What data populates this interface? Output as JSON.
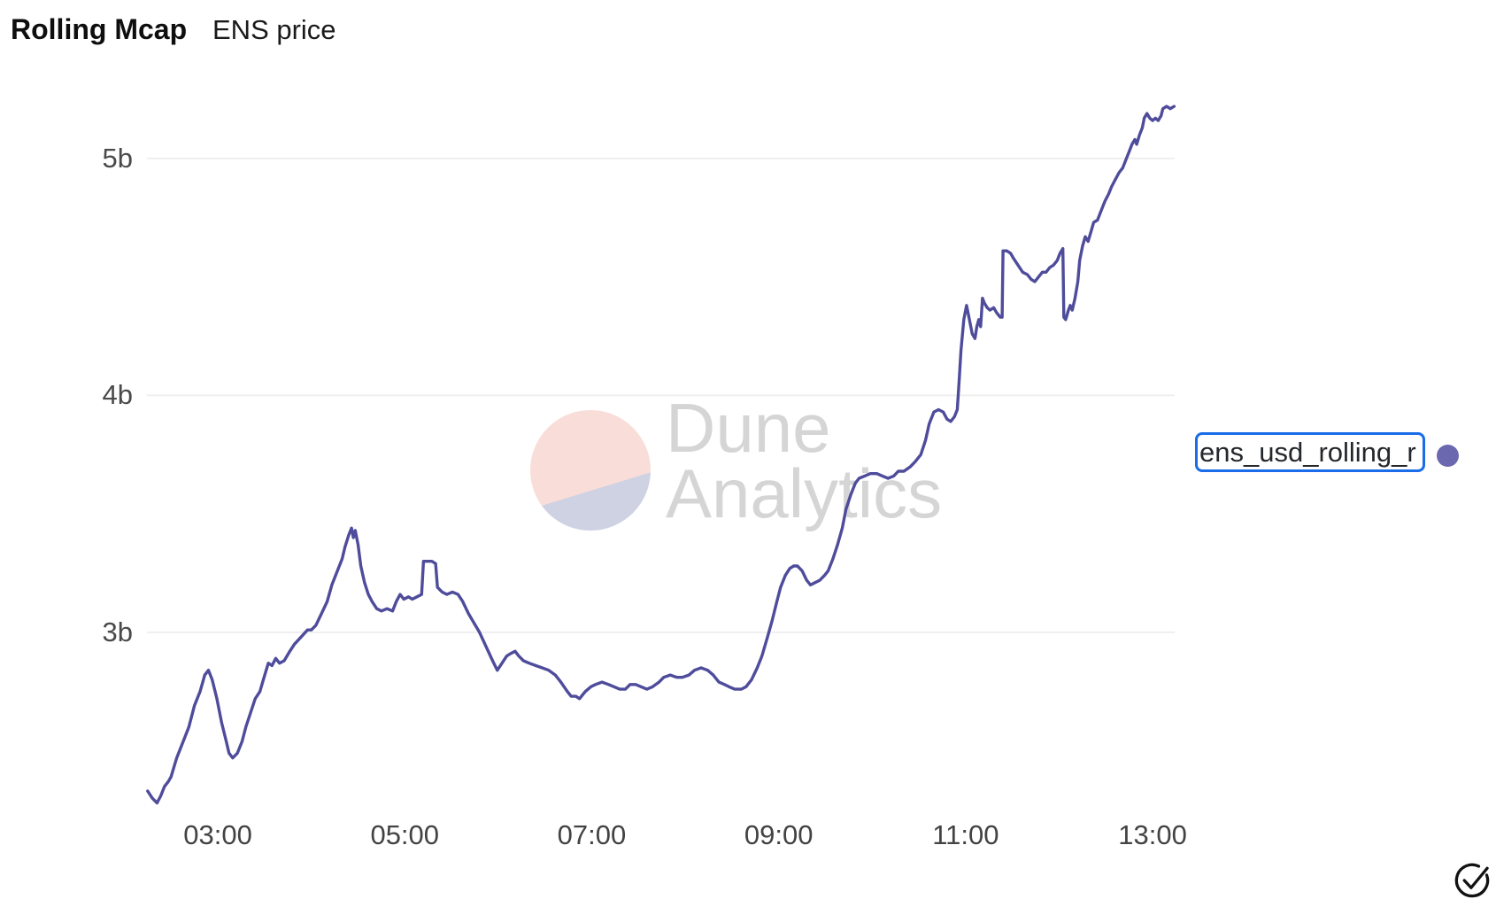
{
  "header": {
    "title": "Rolling Mcap",
    "subtitle": "ENS price"
  },
  "watermark": {
    "line1": "Dune",
    "line2": "Analytics",
    "circle_top_color": "#f9ddd8",
    "circle_bottom_color": "#ced2e3",
    "text_color": "#d5d5d5"
  },
  "legend": {
    "label": "ens_usd_rolling_r",
    "border_color": "#1a6ce8",
    "dot_color": "#6b68b0"
  },
  "icons": {
    "check_circle": "check-circle"
  },
  "chart_data": {
    "type": "line",
    "title": "Rolling Mcap",
    "subtitle": "ENS price",
    "grid": "horizontal-only",
    "grid_color": "#efefef",
    "legend_position": "right",
    "x_axis": {
      "kind": "time",
      "tick_labels": [
        "03:00",
        "05:00",
        "07:00",
        "09:00",
        "11:00",
        "13:00"
      ],
      "tick_values": [
        3,
        5,
        7,
        9,
        11,
        13
      ],
      "range": [
        2.242,
        13.236
      ]
    },
    "y_axis": {
      "kind": "market-cap-billions",
      "tick_labels": [
        "3b",
        "4b",
        "5b"
      ],
      "tick_values": [
        3,
        4,
        5
      ],
      "range": [
        2.267,
        5.295
      ]
    },
    "series": [
      {
        "name": "ens_usd_rolling_r",
        "color": "#4e4c9b",
        "points": [
          [
            2.25,
            2.33
          ],
          [
            2.3,
            2.3
          ],
          [
            2.35,
            2.28
          ],
          [
            2.39,
            2.31
          ],
          [
            2.43,
            2.35
          ],
          [
            2.47,
            2.37
          ],
          [
            2.5,
            2.39
          ],
          [
            2.56,
            2.47
          ],
          [
            2.63,
            2.54
          ],
          [
            2.69,
            2.6
          ],
          [
            2.75,
            2.69
          ],
          [
            2.81,
            2.75
          ],
          [
            2.86,
            2.82
          ],
          [
            2.9,
            2.84
          ],
          [
            2.94,
            2.8
          ],
          [
            2.99,
            2.72
          ],
          [
            3.04,
            2.62
          ],
          [
            3.09,
            2.54
          ],
          [
            3.12,
            2.49
          ],
          [
            3.16,
            2.47
          ],
          [
            3.21,
            2.49
          ],
          [
            3.26,
            2.54
          ],
          [
            3.3,
            2.6
          ],
          [
            3.35,
            2.66
          ],
          [
            3.4,
            2.72
          ],
          [
            3.45,
            2.75
          ],
          [
            3.48,
            2.79
          ],
          [
            3.54,
            2.87
          ],
          [
            3.58,
            2.86
          ],
          [
            3.62,
            2.89
          ],
          [
            3.66,
            2.87
          ],
          [
            3.71,
            2.88
          ],
          [
            3.77,
            2.92
          ],
          [
            3.82,
            2.95
          ],
          [
            3.89,
            2.98
          ],
          [
            3.96,
            3.01
          ],
          [
            4.0,
            3.01
          ],
          [
            4.05,
            3.03
          ],
          [
            4.11,
            3.08
          ],
          [
            4.17,
            3.13
          ],
          [
            4.22,
            3.2
          ],
          [
            4.28,
            3.26
          ],
          [
            4.33,
            3.31
          ],
          [
            4.36,
            3.36
          ],
          [
            4.4,
            3.41
          ],
          [
            4.43,
            3.44
          ],
          [
            4.45,
            3.4
          ],
          [
            4.47,
            3.43
          ],
          [
            4.5,
            3.37
          ],
          [
            4.53,
            3.28
          ],
          [
            4.57,
            3.21
          ],
          [
            4.61,
            3.16
          ],
          [
            4.65,
            3.13
          ],
          [
            4.7,
            3.1
          ],
          [
            4.75,
            3.09
          ],
          [
            4.81,
            3.1
          ],
          [
            4.87,
            3.09
          ],
          [
            4.91,
            3.13
          ],
          [
            4.95,
            3.16
          ],
          [
            4.99,
            3.14
          ],
          [
            5.04,
            3.15
          ],
          [
            5.08,
            3.14
          ],
          [
            5.13,
            3.15
          ],
          [
            5.18,
            3.16
          ],
          [
            5.2,
            3.3
          ],
          [
            5.24,
            3.3
          ],
          [
            5.29,
            3.3
          ],
          [
            5.33,
            3.29
          ],
          [
            5.35,
            3.19
          ],
          [
            5.4,
            3.17
          ],
          [
            5.45,
            3.16
          ],
          [
            5.51,
            3.17
          ],
          [
            5.57,
            3.16
          ],
          [
            5.62,
            3.13
          ],
          [
            5.68,
            3.08
          ],
          [
            5.74,
            3.04
          ],
          [
            5.8,
            3.0
          ],
          [
            5.87,
            2.94
          ],
          [
            5.94,
            2.88
          ],
          [
            5.99,
            2.84
          ],
          [
            6.04,
            2.87
          ],
          [
            6.09,
            2.9
          ],
          [
            6.13,
            2.91
          ],
          [
            6.18,
            2.92
          ],
          [
            6.22,
            2.9
          ],
          [
            6.27,
            2.88
          ],
          [
            6.33,
            2.87
          ],
          [
            6.4,
            2.86
          ],
          [
            6.47,
            2.85
          ],
          [
            6.54,
            2.84
          ],
          [
            6.61,
            2.82
          ],
          [
            6.67,
            2.79
          ],
          [
            6.74,
            2.75
          ],
          [
            6.78,
            2.73
          ],
          [
            6.83,
            2.73
          ],
          [
            6.87,
            2.72
          ],
          [
            6.93,
            2.75
          ],
          [
            6.99,
            2.77
          ],
          [
            7.04,
            2.78
          ],
          [
            7.11,
            2.79
          ],
          [
            7.18,
            2.78
          ],
          [
            7.24,
            2.77
          ],
          [
            7.3,
            2.76
          ],
          [
            7.36,
            2.76
          ],
          [
            7.41,
            2.78
          ],
          [
            7.47,
            2.78
          ],
          [
            7.53,
            2.77
          ],
          [
            7.59,
            2.76
          ],
          [
            7.65,
            2.77
          ],
          [
            7.72,
            2.79
          ],
          [
            7.77,
            2.81
          ],
          [
            7.84,
            2.82
          ],
          [
            7.91,
            2.81
          ],
          [
            7.97,
            2.81
          ],
          [
            8.04,
            2.82
          ],
          [
            8.1,
            2.84
          ],
          [
            8.17,
            2.85
          ],
          [
            8.24,
            2.84
          ],
          [
            8.3,
            2.82
          ],
          [
            8.36,
            2.79
          ],
          [
            8.42,
            2.78
          ],
          [
            8.47,
            2.77
          ],
          [
            8.53,
            2.76
          ],
          [
            8.6,
            2.76
          ],
          [
            8.65,
            2.77
          ],
          [
            8.71,
            2.8
          ],
          [
            8.77,
            2.85
          ],
          [
            8.82,
            2.9
          ],
          [
            8.88,
            2.98
          ],
          [
            8.93,
            3.05
          ],
          [
            8.98,
            3.13
          ],
          [
            9.02,
            3.19
          ],
          [
            9.07,
            3.24
          ],
          [
            9.12,
            3.27
          ],
          [
            9.16,
            3.28
          ],
          [
            9.2,
            3.28
          ],
          [
            9.25,
            3.26
          ],
          [
            9.3,
            3.22
          ],
          [
            9.34,
            3.2
          ],
          [
            9.39,
            3.21
          ],
          [
            9.44,
            3.22
          ],
          [
            9.49,
            3.24
          ],
          [
            9.53,
            3.26
          ],
          [
            9.58,
            3.31
          ],
          [
            9.63,
            3.37
          ],
          [
            9.68,
            3.44
          ],
          [
            9.72,
            3.52
          ],
          [
            9.77,
            3.58
          ],
          [
            9.82,
            3.63
          ],
          [
            9.86,
            3.65
          ],
          [
            9.92,
            3.66
          ],
          [
            9.98,
            3.67
          ],
          [
            10.05,
            3.67
          ],
          [
            10.11,
            3.66
          ],
          [
            10.17,
            3.65
          ],
          [
            10.23,
            3.66
          ],
          [
            10.28,
            3.68
          ],
          [
            10.34,
            3.68
          ],
          [
            10.41,
            3.7
          ],
          [
            10.46,
            3.72
          ],
          [
            10.52,
            3.75
          ],
          [
            10.57,
            3.81
          ],
          [
            10.61,
            3.88
          ],
          [
            10.66,
            3.93
          ],
          [
            10.71,
            3.94
          ],
          [
            10.76,
            3.93
          ],
          [
            10.8,
            3.9
          ],
          [
            10.84,
            3.89
          ],
          [
            10.88,
            3.91
          ],
          [
            10.91,
            3.94
          ],
          [
            10.93,
            4.06
          ],
          [
            10.95,
            4.19
          ],
          [
            10.98,
            4.32
          ],
          [
            11.01,
            4.38
          ],
          [
            11.04,
            4.32
          ],
          [
            11.07,
            4.26
          ],
          [
            11.1,
            4.24
          ],
          [
            11.12,
            4.29
          ],
          [
            11.14,
            4.32
          ],
          [
            11.16,
            4.29
          ],
          [
            11.18,
            4.41
          ],
          [
            11.2,
            4.39
          ],
          [
            11.23,
            4.37
          ],
          [
            11.26,
            4.36
          ],
          [
            11.3,
            4.37
          ],
          [
            11.33,
            4.35
          ],
          [
            11.37,
            4.33
          ],
          [
            11.39,
            4.33
          ],
          [
            11.4,
            4.61
          ],
          [
            11.44,
            4.61
          ],
          [
            11.48,
            4.6
          ],
          [
            11.51,
            4.58
          ],
          [
            11.56,
            4.55
          ],
          [
            11.61,
            4.52
          ],
          [
            11.66,
            4.51
          ],
          [
            11.7,
            4.49
          ],
          [
            11.74,
            4.48
          ],
          [
            11.78,
            4.5
          ],
          [
            11.82,
            4.52
          ],
          [
            11.86,
            4.52
          ],
          [
            11.9,
            4.54
          ],
          [
            11.94,
            4.55
          ],
          [
            11.98,
            4.57
          ],
          [
            12.01,
            4.6
          ],
          [
            12.04,
            4.62
          ],
          [
            12.05,
            4.33
          ],
          [
            12.07,
            4.32
          ],
          [
            12.1,
            4.36
          ],
          [
            12.12,
            4.38
          ],
          [
            12.14,
            4.36
          ],
          [
            12.17,
            4.41
          ],
          [
            12.2,
            4.48
          ],
          [
            12.22,
            4.57
          ],
          [
            12.25,
            4.63
          ],
          [
            12.28,
            4.67
          ],
          [
            12.31,
            4.65
          ],
          [
            12.34,
            4.69
          ],
          [
            12.37,
            4.73
          ],
          [
            12.41,
            4.74
          ],
          [
            12.45,
            4.78
          ],
          [
            12.49,
            4.82
          ],
          [
            12.53,
            4.85
          ],
          [
            12.56,
            4.88
          ],
          [
            12.6,
            4.91
          ],
          [
            12.64,
            4.94
          ],
          [
            12.68,
            4.96
          ],
          [
            12.72,
            5.0
          ],
          [
            12.75,
            5.03
          ],
          [
            12.78,
            5.06
          ],
          [
            12.81,
            5.08
          ],
          [
            12.83,
            5.06
          ],
          [
            12.86,
            5.1
          ],
          [
            12.89,
            5.13
          ],
          [
            12.91,
            5.17
          ],
          [
            12.94,
            5.19
          ],
          [
            12.97,
            5.17
          ],
          [
            13.0,
            5.16
          ],
          [
            13.03,
            5.17
          ],
          [
            13.06,
            5.16
          ],
          [
            13.09,
            5.18
          ],
          [
            13.11,
            5.21
          ],
          [
            13.15,
            5.22
          ],
          [
            13.19,
            5.21
          ],
          [
            13.23,
            5.22
          ]
        ]
      }
    ]
  }
}
